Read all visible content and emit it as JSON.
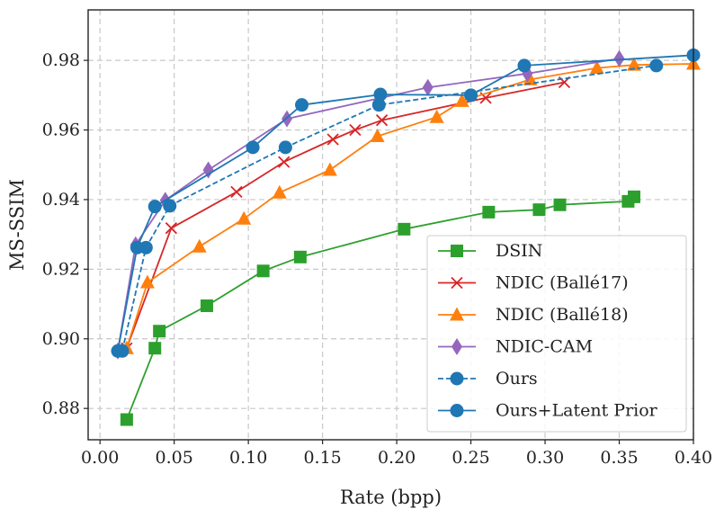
{
  "chart_data": {
    "type": "line",
    "title": "",
    "xlabel": "Rate (bpp)",
    "ylabel": "MS-SSIM",
    "xlim": [
      -0.008,
      0.4
    ],
    "ylim": [
      0.871,
      0.9945
    ],
    "xticks": [
      0.0,
      0.05,
      0.1,
      0.15,
      0.2,
      0.25,
      0.3,
      0.35,
      0.4
    ],
    "xtick_labels": [
      "0.00",
      "0.05",
      "0.10",
      "0.15",
      "0.20",
      "0.25",
      "0.30",
      "0.35",
      "0.40"
    ],
    "yticks": [
      0.88,
      0.9,
      0.92,
      0.94,
      0.96,
      0.98
    ],
    "ytick_labels": [
      "0.88",
      "0.90",
      "0.92",
      "0.94",
      "0.96",
      "0.98"
    ],
    "grid": true,
    "legend_position": "bottom-right",
    "series": [
      {
        "name": "DSIN",
        "color": "#2ca02c",
        "marker": "square",
        "dash": "solid",
        "x": [
          0.018,
          0.037,
          0.04,
          0.072,
          0.11,
          0.135,
          0.205,
          0.262,
          0.296,
          0.31,
          0.356,
          0.36
        ],
        "y": [
          0.8768,
          0.8973,
          0.9022,
          0.9095,
          0.9195,
          0.9235,
          0.9315,
          0.9364,
          0.9371,
          0.9385,
          0.9395,
          0.9408
        ]
      },
      {
        "name": "NDIC (Ballé17)",
        "color": "#d62728",
        "marker": "x",
        "dash": "solid",
        "x": [
          0.018,
          0.048,
          0.092,
          0.124,
          0.157,
          0.172,
          0.19,
          0.26,
          0.313
        ],
        "y": [
          0.8973,
          0.9318,
          0.9422,
          0.9508,
          0.9573,
          0.96,
          0.9628,
          0.9692,
          0.9737
        ]
      },
      {
        "name": "NDIC (Ballé18)",
        "color": "#ff7f0e",
        "marker": "triangle",
        "dash": "solid",
        "x": [
          0.018,
          0.032,
          0.067,
          0.097,
          0.121,
          0.155,
          0.187,
          0.227,
          0.244,
          0.29,
          0.335,
          0.36,
          0.4
        ],
        "y": [
          0.8973,
          0.9162,
          0.9265,
          0.9345,
          0.942,
          0.9485,
          0.9582,
          0.9637,
          0.9683,
          0.9745,
          0.9778,
          0.9787,
          0.979
        ]
      },
      {
        "name": "NDIC-CAM",
        "color": "#9467bd",
        "marker": "diamond",
        "dash": "solid",
        "x": [
          0.012,
          0.024,
          0.044,
          0.073,
          0.126,
          0.221,
          0.288,
          0.35
        ],
        "y": [
          0.8965,
          0.927,
          0.9398,
          0.9485,
          0.9632,
          0.9722,
          0.9762,
          0.9805
        ]
      },
      {
        "name": "Ours",
        "color": "#1f77b4",
        "marker": "circle",
        "dash": "dashed",
        "x": [
          0.015,
          0.031,
          0.047,
          0.125,
          0.188,
          0.375
        ],
        "y": [
          0.8965,
          0.9262,
          0.9382,
          0.955,
          0.9672,
          0.9785
        ]
      },
      {
        "name": "Ours+Latent Prior",
        "color": "#1f77b4",
        "marker": "circle",
        "dash": "solid",
        "x": [
          0.012,
          0.025,
          0.037,
          0.103,
          0.136,
          0.189,
          0.25,
          0.286,
          0.4
        ],
        "y": [
          0.8965,
          0.9262,
          0.938,
          0.955,
          0.9672,
          0.9702,
          0.97,
          0.9785,
          0.9815
        ]
      }
    ]
  }
}
